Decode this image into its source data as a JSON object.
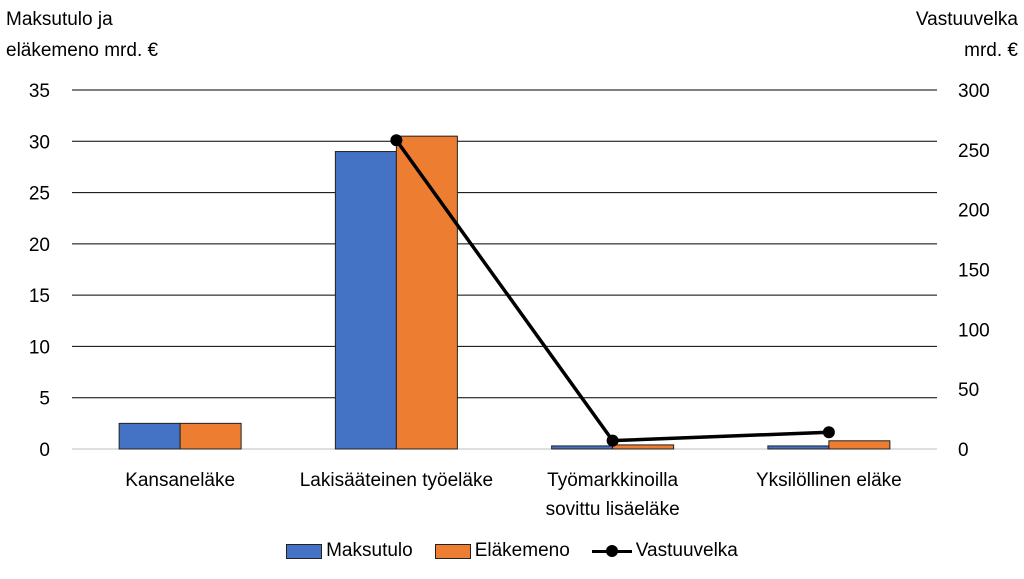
{
  "chart_data": {
    "type": "bar",
    "categories": [
      "Kansaneläke",
      "Lakisääteinen työeläke",
      "Työmarkkinoilla sovittu lisäeläke",
      "Yksilöllinen eläke"
    ],
    "category_lines": [
      [
        "Kansaneläke"
      ],
      [
        "Lakisääteinen työeläke"
      ],
      [
        "Työmarkkinoilla",
        "sovittu lisäeläke"
      ],
      [
        "Yksilöllinen eläke"
      ]
    ],
    "series": [
      {
        "name": "Maksutulo",
        "type": "bar",
        "axis": "left",
        "color": "#4472C4",
        "values": [
          2.5,
          29,
          0.3,
          0.3
        ]
      },
      {
        "name": "Eläkemeno",
        "type": "bar",
        "axis": "left",
        "color": "#ED7D31",
        "values": [
          2.5,
          30.5,
          0.4,
          0.8
        ]
      },
      {
        "name": "Vastuuvelka",
        "type": "line",
        "axis": "right",
        "color": "#000000",
        "values": [
          null,
          258,
          7,
          14
        ]
      }
    ],
    "ylabel_left": [
      "Maksutulo ja",
      "eläkemeno mrd. €"
    ],
    "ylabel_right": [
      "Vastuuvelka",
      "mrd. €"
    ],
    "ylim_left": [
      0,
      35
    ],
    "yticks_left": [
      "0",
      "5",
      "10",
      "15",
      "20",
      "25",
      "30",
      "35"
    ],
    "ylim_right": [
      0,
      300
    ],
    "yticks_right": [
      "0",
      "50",
      "100",
      "150",
      "200",
      "250",
      "300"
    ],
    "grid": true,
    "legend_position": "bottom"
  }
}
